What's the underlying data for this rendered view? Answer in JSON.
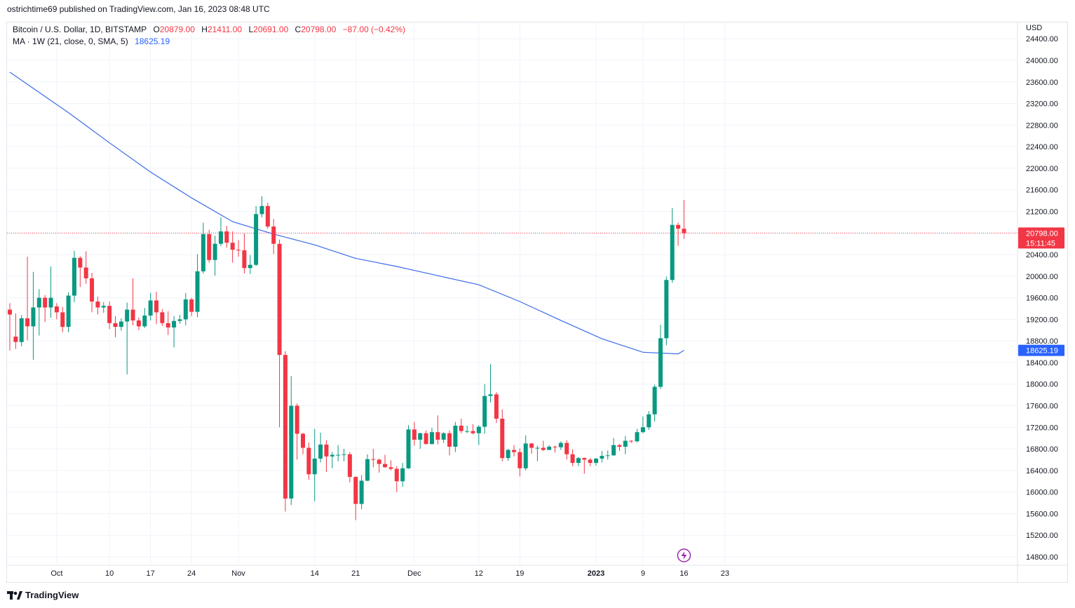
{
  "header": {
    "published": "ostrichtime69 published on TradingView.com, Jan 16, 2023 08:48 UTC"
  },
  "legend": {
    "symbol": "Bitcoin / U.S. Dollar, 1D, BITSTAMP",
    "o_label": "O",
    "o_value": "20879.00",
    "h_label": "H",
    "h_value": "21411.00",
    "l_label": "L",
    "l_value": "20691.00",
    "c_label": "C",
    "c_value": "20798.00",
    "change": "−87.00 (−0.42%)",
    "ma_label": "MA · 1W (21, close, 0, SMA, 5)",
    "ma_value": "18625.19"
  },
  "brand": {
    "name": "TradingView"
  },
  "colors": {
    "up": "#089981",
    "down": "#f23645",
    "ma": "#3a6be8",
    "grid": "#f0f3fa"
  },
  "chart_data": {
    "type": "candlestick",
    "currency": "USD",
    "ylim": [
      14650,
      24600
    ],
    "y_ticks": [
      14800,
      15200,
      15600,
      16000,
      16400,
      16800,
      17200,
      17600,
      18000,
      18400,
      18800,
      19200,
      19600,
      20000,
      20400,
      20800,
      21200,
      21600,
      22000,
      22400,
      22800,
      23200,
      23600,
      24000,
      24400
    ],
    "x_ticks": [
      {
        "date": "2022-10-01",
        "label": "Oct",
        "bold": false
      },
      {
        "date": "2022-10-10",
        "label": "10",
        "bold": false
      },
      {
        "date": "2022-10-17",
        "label": "17",
        "bold": false
      },
      {
        "date": "2022-10-24",
        "label": "24",
        "bold": false
      },
      {
        "date": "2022-11-01",
        "label": "Nov",
        "bold": false
      },
      {
        "date": "2022-11-14",
        "label": "14",
        "bold": false
      },
      {
        "date": "2022-11-21",
        "label": "21",
        "bold": false
      },
      {
        "date": "2022-12-01",
        "label": "Dec",
        "bold": false
      },
      {
        "date": "2022-12-12",
        "label": "12",
        "bold": false
      },
      {
        "date": "2022-12-19",
        "label": "19",
        "bold": false
      },
      {
        "date": "2023-01-01",
        "label": "2023",
        "bold": true
      },
      {
        "date": "2023-01-09",
        "label": "9",
        "bold": false
      },
      {
        "date": "2023-01-16",
        "label": "16",
        "bold": false
      },
      {
        "date": "2023-01-23",
        "label": "23",
        "bold": false
      }
    ],
    "x_range": [
      "2022-09-23",
      "2023-01-23"
    ],
    "candles": [
      {
        "d": "2022-09-23",
        "o": 19380,
        "h": 19500,
        "l": 18620,
        "c": 19290
      },
      {
        "d": "2022-09-24",
        "o": 18880,
        "h": 19310,
        "l": 18650,
        "c": 18780
      },
      {
        "d": "2022-09-25",
        "o": 18780,
        "h": 19280,
        "l": 18700,
        "c": 19220
      },
      {
        "d": "2022-09-26",
        "o": 19220,
        "h": 20360,
        "l": 18810,
        "c": 19070
      },
      {
        "d": "2022-09-27",
        "o": 19070,
        "h": 20080,
        "l": 18450,
        "c": 19420
      },
      {
        "d": "2022-09-28",
        "o": 19420,
        "h": 19760,
        "l": 18900,
        "c": 19600
      },
      {
        "d": "2022-09-29",
        "o": 19600,
        "h": 19650,
        "l": 19150,
        "c": 19420
      },
      {
        "d": "2022-09-30",
        "o": 19420,
        "h": 20180,
        "l": 19230,
        "c": 19600
      },
      {
        "d": "2022-10-01",
        "o": 19440,
        "h": 19500,
        "l": 19200,
        "c": 19330
      },
      {
        "d": "2022-10-02",
        "o": 19330,
        "h": 19430,
        "l": 18960,
        "c": 19060
      },
      {
        "d": "2022-10-03",
        "o": 19060,
        "h": 19700,
        "l": 18960,
        "c": 19640
      },
      {
        "d": "2022-10-04",
        "o": 19640,
        "h": 20470,
        "l": 19520,
        "c": 20340
      },
      {
        "d": "2022-10-05",
        "o": 20340,
        "h": 20370,
        "l": 19800,
        "c": 20160
      },
      {
        "d": "2022-10-06",
        "o": 20160,
        "h": 20460,
        "l": 19860,
        "c": 19960
      },
      {
        "d": "2022-10-07",
        "o": 19960,
        "h": 20060,
        "l": 19330,
        "c": 19530
      },
      {
        "d": "2022-10-08",
        "o": 19530,
        "h": 19620,
        "l": 19290,
        "c": 19420
      },
      {
        "d": "2022-10-09",
        "o": 19420,
        "h": 19520,
        "l": 19320,
        "c": 19450
      },
      {
        "d": "2022-10-10",
        "o": 19450,
        "h": 19530,
        "l": 19020,
        "c": 19130
      },
      {
        "d": "2022-10-11",
        "o": 19130,
        "h": 19260,
        "l": 18870,
        "c": 19060
      },
      {
        "d": "2022-10-12",
        "o": 19060,
        "h": 19220,
        "l": 18990,
        "c": 19160
      },
      {
        "d": "2022-10-13",
        "o": 19160,
        "h": 19510,
        "l": 18180,
        "c": 19380
      },
      {
        "d": "2022-10-14",
        "o": 19380,
        "h": 19960,
        "l": 19090,
        "c": 19180
      },
      {
        "d": "2022-10-15",
        "o": 19180,
        "h": 19230,
        "l": 19000,
        "c": 19070
      },
      {
        "d": "2022-10-16",
        "o": 19070,
        "h": 19410,
        "l": 19040,
        "c": 19270
      },
      {
        "d": "2022-10-17",
        "o": 19270,
        "h": 19690,
        "l": 19180,
        "c": 19550
      },
      {
        "d": "2022-10-18",
        "o": 19550,
        "h": 19710,
        "l": 19110,
        "c": 19330
      },
      {
        "d": "2022-10-19",
        "o": 19330,
        "h": 19390,
        "l": 19080,
        "c": 19130
      },
      {
        "d": "2022-10-20",
        "o": 19130,
        "h": 19350,
        "l": 18910,
        "c": 19050
      },
      {
        "d": "2022-10-21",
        "o": 19050,
        "h": 19260,
        "l": 18680,
        "c": 19170
      },
      {
        "d": "2022-10-22",
        "o": 19170,
        "h": 19280,
        "l": 19120,
        "c": 19200
      },
      {
        "d": "2022-10-23",
        "o": 19200,
        "h": 19690,
        "l": 19090,
        "c": 19570
      },
      {
        "d": "2022-10-24",
        "o": 19570,
        "h": 19600,
        "l": 19260,
        "c": 19340
      },
      {
        "d": "2022-10-25",
        "o": 19340,
        "h": 20410,
        "l": 19240,
        "c": 20090
      },
      {
        "d": "2022-10-26",
        "o": 20090,
        "h": 20990,
        "l": 20050,
        "c": 20780
      },
      {
        "d": "2022-10-27",
        "o": 20780,
        "h": 20860,
        "l": 20250,
        "c": 20300
      },
      {
        "d": "2022-10-28",
        "o": 20300,
        "h": 20750,
        "l": 20010,
        "c": 20600
      },
      {
        "d": "2022-10-29",
        "o": 20600,
        "h": 21090,
        "l": 20560,
        "c": 20830
      },
      {
        "d": "2022-10-30",
        "o": 20830,
        "h": 20930,
        "l": 20530,
        "c": 20620
      },
      {
        "d": "2022-10-31",
        "o": 20620,
        "h": 20830,
        "l": 20250,
        "c": 20490
      },
      {
        "d": "2022-11-01",
        "o": 20490,
        "h": 20670,
        "l": 20360,
        "c": 20480
      },
      {
        "d": "2022-11-02",
        "o": 20480,
        "h": 20790,
        "l": 20050,
        "c": 20150
      },
      {
        "d": "2022-11-03",
        "o": 20150,
        "h": 20390,
        "l": 20040,
        "c": 20210
      },
      {
        "d": "2022-11-04",
        "o": 20210,
        "h": 21300,
        "l": 20190,
        "c": 21150
      },
      {
        "d": "2022-11-05",
        "o": 21150,
        "h": 21480,
        "l": 21090,
        "c": 21300
      },
      {
        "d": "2022-11-06",
        "o": 21300,
        "h": 21360,
        "l": 20880,
        "c": 20920
      },
      {
        "d": "2022-11-07",
        "o": 20920,
        "h": 21060,
        "l": 20410,
        "c": 20600
      },
      {
        "d": "2022-11-08",
        "o": 20600,
        "h": 20680,
        "l": 17200,
        "c": 18540
      },
      {
        "d": "2022-11-09",
        "o": 18540,
        "h": 18610,
        "l": 15640,
        "c": 15880
      },
      {
        "d": "2022-11-10",
        "o": 15880,
        "h": 18150,
        "l": 15760,
        "c": 17600
      },
      {
        "d": "2022-11-11",
        "o": 17600,
        "h": 17640,
        "l": 16600,
        "c": 17080
      },
      {
        "d": "2022-11-12",
        "o": 17080,
        "h": 17100,
        "l": 16700,
        "c": 16820
      },
      {
        "d": "2022-11-13",
        "o": 16820,
        "h": 16920,
        "l": 16230,
        "c": 16330
      },
      {
        "d": "2022-11-14",
        "o": 16330,
        "h": 17170,
        "l": 15830,
        "c": 16620
      },
      {
        "d": "2022-11-15",
        "o": 16620,
        "h": 17100,
        "l": 16550,
        "c": 16880
      },
      {
        "d": "2022-11-16",
        "o": 16880,
        "h": 16960,
        "l": 16370,
        "c": 16660
      },
      {
        "d": "2022-11-17",
        "o": 16660,
        "h": 16740,
        "l": 16440,
        "c": 16690
      },
      {
        "d": "2022-11-18",
        "o": 16690,
        "h": 16870,
        "l": 16570,
        "c": 16690
      },
      {
        "d": "2022-11-19",
        "o": 16690,
        "h": 16800,
        "l": 16570,
        "c": 16700
      },
      {
        "d": "2022-11-20",
        "o": 16700,
        "h": 16740,
        "l": 16180,
        "c": 16280
      },
      {
        "d": "2022-11-21",
        "o": 16280,
        "h": 16290,
        "l": 15480,
        "c": 15780
      },
      {
        "d": "2022-11-22",
        "o": 15780,
        "h": 16310,
        "l": 15680,
        "c": 16210
      },
      {
        "d": "2022-11-23",
        "o": 16210,
        "h": 16700,
        "l": 16200,
        "c": 16610
      },
      {
        "d": "2022-11-24",
        "o": 16610,
        "h": 16800,
        "l": 16460,
        "c": 16600
      },
      {
        "d": "2022-11-25",
        "o": 16600,
        "h": 16620,
        "l": 16360,
        "c": 16520
      },
      {
        "d": "2022-11-26",
        "o": 16520,
        "h": 16690,
        "l": 16450,
        "c": 16460
      },
      {
        "d": "2022-11-27",
        "o": 16460,
        "h": 16590,
        "l": 16400,
        "c": 16430
      },
      {
        "d": "2022-11-28",
        "o": 16430,
        "h": 16480,
        "l": 16000,
        "c": 16200
      },
      {
        "d": "2022-11-29",
        "o": 16200,
        "h": 16540,
        "l": 16100,
        "c": 16440
      },
      {
        "d": "2022-11-30",
        "o": 16440,
        "h": 17240,
        "l": 16430,
        "c": 17160
      },
      {
        "d": "2022-12-01",
        "o": 17160,
        "h": 17300,
        "l": 16860,
        "c": 16970
      },
      {
        "d": "2022-12-02",
        "o": 16970,
        "h": 17100,
        "l": 16800,
        "c": 17090
      },
      {
        "d": "2022-12-03",
        "o": 17090,
        "h": 17140,
        "l": 16880,
        "c": 16890
      },
      {
        "d": "2022-12-04",
        "o": 16890,
        "h": 17190,
        "l": 16880,
        "c": 17110
      },
      {
        "d": "2022-12-05",
        "o": 17110,
        "h": 17420,
        "l": 16880,
        "c": 16970
      },
      {
        "d": "2022-12-06",
        "o": 16970,
        "h": 17110,
        "l": 16910,
        "c": 17090
      },
      {
        "d": "2022-12-07",
        "o": 17090,
        "h": 17140,
        "l": 16680,
        "c": 16840
      },
      {
        "d": "2022-12-08",
        "o": 16840,
        "h": 17300,
        "l": 16740,
        "c": 17230
      },
      {
        "d": "2022-12-09",
        "o": 17230,
        "h": 17360,
        "l": 17090,
        "c": 17130
      },
      {
        "d": "2022-12-10",
        "o": 17130,
        "h": 17230,
        "l": 17090,
        "c": 17130
      },
      {
        "d": "2022-12-11",
        "o": 17130,
        "h": 17260,
        "l": 17070,
        "c": 17090
      },
      {
        "d": "2022-12-12",
        "o": 17090,
        "h": 17240,
        "l": 16870,
        "c": 17210
      },
      {
        "d": "2022-12-13",
        "o": 17210,
        "h": 18000,
        "l": 17080,
        "c": 17780
      },
      {
        "d": "2022-12-14",
        "o": 17780,
        "h": 18370,
        "l": 17660,
        "c": 17810
      },
      {
        "d": "2022-12-15",
        "o": 17810,
        "h": 17850,
        "l": 17280,
        "c": 17360
      },
      {
        "d": "2022-12-16",
        "o": 17360,
        "h": 17530,
        "l": 16570,
        "c": 16630
      },
      {
        "d": "2022-12-17",
        "o": 16630,
        "h": 16800,
        "l": 16580,
        "c": 16780
      },
      {
        "d": "2022-12-18",
        "o": 16780,
        "h": 16870,
        "l": 16660,
        "c": 16740
      },
      {
        "d": "2022-12-19",
        "o": 16740,
        "h": 16810,
        "l": 16290,
        "c": 16440
      },
      {
        "d": "2022-12-20",
        "o": 16440,
        "h": 17050,
        "l": 16400,
        "c": 16900
      },
      {
        "d": "2022-12-21",
        "o": 16900,
        "h": 16910,
        "l": 16710,
        "c": 16820
      },
      {
        "d": "2022-12-22",
        "o": 16820,
        "h": 16860,
        "l": 16570,
        "c": 16820
      },
      {
        "d": "2022-12-23",
        "o": 16820,
        "h": 16950,
        "l": 16760,
        "c": 16780
      },
      {
        "d": "2022-12-24",
        "o": 16780,
        "h": 16870,
        "l": 16780,
        "c": 16840
      },
      {
        "d": "2022-12-25",
        "o": 16840,
        "h": 16860,
        "l": 16730,
        "c": 16830
      },
      {
        "d": "2022-12-26",
        "o": 16830,
        "h": 16940,
        "l": 16780,
        "c": 16910
      },
      {
        "d": "2022-12-27",
        "o": 16910,
        "h": 16960,
        "l": 16600,
        "c": 16700
      },
      {
        "d": "2022-12-28",
        "o": 16700,
        "h": 16790,
        "l": 16480,
        "c": 16540
      },
      {
        "d": "2022-12-29",
        "o": 16540,
        "h": 16650,
        "l": 16480,
        "c": 16630
      },
      {
        "d": "2022-12-30",
        "o": 16630,
        "h": 16640,
        "l": 16340,
        "c": 16600
      },
      {
        "d": "2022-12-31",
        "o": 16600,
        "h": 16630,
        "l": 16480,
        "c": 16540
      },
      {
        "d": "2023-01-01",
        "o": 16540,
        "h": 16630,
        "l": 16490,
        "c": 16620
      },
      {
        "d": "2023-01-02",
        "o": 16620,
        "h": 16760,
        "l": 16550,
        "c": 16670
      },
      {
        "d": "2023-01-03",
        "o": 16670,
        "h": 16770,
        "l": 16600,
        "c": 16680
      },
      {
        "d": "2023-01-04",
        "o": 16680,
        "h": 17000,
        "l": 16670,
        "c": 16870
      },
      {
        "d": "2023-01-05",
        "o": 16870,
        "h": 16890,
        "l": 16760,
        "c": 16840
      },
      {
        "d": "2023-01-06",
        "o": 16840,
        "h": 17040,
        "l": 16700,
        "c": 16950
      },
      {
        "d": "2023-01-07",
        "o": 16950,
        "h": 16960,
        "l": 16910,
        "c": 16940
      },
      {
        "d": "2023-01-08",
        "o": 16940,
        "h": 17170,
        "l": 16920,
        "c": 17110
      },
      {
        "d": "2023-01-09",
        "o": 17110,
        "h": 17400,
        "l": 17090,
        "c": 17200
      },
      {
        "d": "2023-01-10",
        "o": 17200,
        "h": 17500,
        "l": 17150,
        "c": 17440
      },
      {
        "d": "2023-01-11",
        "o": 17440,
        "h": 17990,
        "l": 17310,
        "c": 17950
      },
      {
        "d": "2023-01-12",
        "o": 17950,
        "h": 19100,
        "l": 17910,
        "c": 18850
      },
      {
        "d": "2023-01-13",
        "o": 18850,
        "h": 19990,
        "l": 18720,
        "c": 19930
      },
      {
        "d": "2023-01-14",
        "o": 19930,
        "h": 21260,
        "l": 19880,
        "c": 20950
      },
      {
        "d": "2023-01-15",
        "o": 20950,
        "h": 20990,
        "l": 20560,
        "c": 20880
      },
      {
        "d": "2023-01-16",
        "o": 20879,
        "h": 21411,
        "l": 20691,
        "c": 20798
      }
    ],
    "ma": {
      "name": "MA",
      "points": [
        {
          "d": "2022-09-23",
          "v": 23780
        },
        {
          "d": "2022-10-03",
          "v": 23030
        },
        {
          "d": "2022-10-10",
          "v": 22470
        },
        {
          "d": "2022-10-17",
          "v": 21930
        },
        {
          "d": "2022-10-24",
          "v": 21450
        },
        {
          "d": "2022-10-31",
          "v": 21010
        },
        {
          "d": "2022-11-07",
          "v": 20780
        },
        {
          "d": "2022-11-14",
          "v": 20580
        },
        {
          "d": "2022-11-21",
          "v": 20330
        },
        {
          "d": "2022-11-28",
          "v": 20180
        },
        {
          "d": "2022-12-05",
          "v": 20010
        },
        {
          "d": "2022-12-12",
          "v": 19840
        },
        {
          "d": "2022-12-19",
          "v": 19530
        },
        {
          "d": "2022-12-26",
          "v": 19180
        },
        {
          "d": "2023-01-02",
          "v": 18840
        },
        {
          "d": "2023-01-09",
          "v": 18590
        },
        {
          "d": "2023-01-15",
          "v": 18560
        },
        {
          "d": "2023-01-16",
          "v": 18625
        }
      ]
    },
    "last_price": {
      "value": 20798,
      "label": "20798.00",
      "countdown": "15:11:45"
    },
    "ma_last": {
      "value": 18625.19,
      "label": "18625.19"
    }
  }
}
